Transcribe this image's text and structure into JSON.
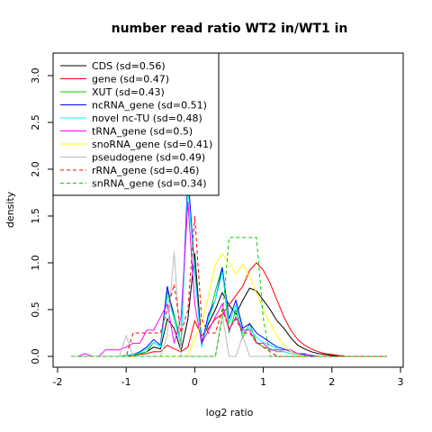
{
  "chart_data": {
    "type": "line",
    "title": "number read ratio WT2 in/WT1 in",
    "xlabel": "log2 ratio",
    "ylabel": "density",
    "xlim": [
      -2,
      3
    ],
    "ylim": [
      0,
      3.0
    ],
    "x_ticks": [
      -2,
      -1,
      0,
      1,
      2,
      3
    ],
    "x_tick_labels": [
      "-2",
      "-1",
      "0",
      "1",
      "2",
      "3"
    ],
    "y_ticks": [
      0.0,
      0.5,
      1.0,
      1.5,
      2.0,
      2.5,
      3.0
    ],
    "y_tick_labels": [
      "0.0",
      "0.5",
      "1.0",
      "1.5",
      "2.0",
      "2.5",
      "3.0"
    ],
    "legend_position": "top-left",
    "grid": false,
    "x": [
      -1.8,
      -1.7,
      -1.6,
      -1.5,
      -1.4,
      -1.3,
      -1.2,
      -1.1,
      -1.0,
      -0.9,
      -0.8,
      -0.7,
      -0.6,
      -0.5,
      -0.4,
      -0.3,
      -0.2,
      -0.1,
      0.0,
      0.1,
      0.2,
      0.3,
      0.4,
      0.5,
      0.6,
      0.7,
      0.8,
      0.9,
      1.0,
      1.1,
      1.2,
      1.3,
      1.4,
      1.5,
      1.6,
      1.7,
      1.8,
      1.9,
      2.0,
      2.1,
      2.2,
      2.3,
      2.4,
      2.5,
      2.6,
      2.7,
      2.8
    ],
    "series": [
      {
        "name": "CDS (sd=0.56)",
        "color": "#000000",
        "dash": "solid",
        "values": [
          0,
          0,
          0,
          0,
          0,
          0,
          0,
          0,
          0.01,
          0.02,
          0.03,
          0.05,
          0.1,
          0.08,
          0.4,
          0.3,
          0.06,
          0.4,
          1.1,
          0.15,
          0.35,
          0.5,
          0.68,
          0.55,
          0.45,
          0.6,
          0.73,
          0.7,
          0.6,
          0.5,
          0.38,
          0.3,
          0.2,
          0.12,
          0.08,
          0.05,
          0.03,
          0.02,
          0.01,
          0.01,
          0,
          0,
          0,
          0,
          0,
          0,
          0
        ]
      },
      {
        "name": "gene (sd=0.47)",
        "color": "#ff0000",
        "dash": "solid",
        "values": [
          0,
          0,
          0,
          0,
          0,
          0,
          0,
          0,
          0.01,
          0.01,
          0.02,
          0.03,
          0.05,
          0.05,
          0.12,
          0.08,
          0.05,
          0.1,
          0.38,
          0.22,
          0.3,
          0.4,
          0.45,
          0.55,
          0.65,
          0.75,
          0.92,
          1.0,
          0.92,
          0.78,
          0.6,
          0.42,
          0.28,
          0.18,
          0.12,
          0.08,
          0.05,
          0.03,
          0.02,
          0.01,
          0,
          0,
          0,
          0,
          0,
          0,
          0
        ]
      },
      {
        "name": "XUT (sd=0.43)",
        "color": "#00cc00",
        "dash": "solid",
        "values": [
          0,
          0,
          0,
          0,
          0,
          0,
          0,
          0,
          0,
          0,
          0.03,
          0.05,
          0.15,
          0.1,
          0.7,
          0.45,
          0.15,
          1.9,
          0.95,
          0.1,
          0.4,
          0.7,
          0.95,
          0.25,
          0.5,
          0.2,
          0.35,
          0.15,
          0.1,
          0.08,
          0.05,
          0.05,
          0.03,
          0.02,
          0,
          0,
          0,
          0,
          0,
          0,
          0,
          0,
          0,
          0,
          0,
          0,
          0
        ]
      },
      {
        "name": "ncRNA_gene (sd=0.51)",
        "color": "#0000ff",
        "dash": "solid",
        "values": [
          0,
          0,
          0,
          0,
          0,
          0,
          0,
          0,
          0.01,
          0.02,
          0.05,
          0.1,
          0.18,
          0.12,
          0.75,
          0.4,
          0.12,
          1.95,
          0.9,
          0.12,
          0.45,
          0.6,
          0.95,
          0.4,
          0.6,
          0.3,
          0.35,
          0.25,
          0.2,
          0.15,
          0.1,
          0.08,
          0.05,
          0.03,
          0.02,
          0.01,
          0,
          0,
          0,
          0,
          0,
          0,
          0,
          0,
          0,
          0,
          0
        ]
      },
      {
        "name": "novel nc-TU (sd=0.48)",
        "color": "#00ffff",
        "dash": "solid",
        "values": [
          0,
          0,
          0,
          0,
          0,
          0,
          0,
          0,
          0.01,
          0.02,
          0.04,
          0.08,
          0.15,
          0.1,
          0.65,
          0.4,
          0.12,
          1.8,
          0.88,
          0.1,
          0.4,
          0.6,
          0.9,
          0.35,
          0.55,
          0.25,
          0.3,
          0.2,
          0.15,
          0.12,
          0.08,
          0.05,
          0.03,
          0.02,
          0.01,
          0,
          0,
          0,
          0,
          0,
          0,
          0,
          0,
          0,
          0,
          0,
          0
        ]
      },
      {
        "name": "tRNA_gene (sd=0.5)",
        "color": "#ff00ff",
        "dash": "solid",
        "values": [
          0,
          0,
          0.03,
          0,
          0,
          0.07,
          0.07,
          0.07,
          0.1,
          0.14,
          0.14,
          0.28,
          0.28,
          0.42,
          0.56,
          0.14,
          0.42,
          1.65,
          0.56,
          0.14,
          0.28,
          0.42,
          0.56,
          0.28,
          0.42,
          0.28,
          0.28,
          0.14,
          0.14,
          0.07,
          0.07,
          0.07,
          0.07,
          0.03,
          0.03,
          0,
          0,
          0,
          0,
          0,
          0,
          0,
          0,
          0,
          0,
          0,
          0
        ]
      },
      {
        "name": "snoRNA_gene (sd=0.41)",
        "color": "#ffff00",
        "dash": "solid",
        "values": [
          0,
          0,
          0,
          0,
          0,
          0,
          0,
          0,
          0,
          0,
          0,
          0,
          0,
          0,
          0,
          0,
          0,
          0,
          0.2,
          0.35,
          0.65,
          0.98,
          1.1,
          1.0,
          0.88,
          0.98,
          0.85,
          0.68,
          0.5,
          0.35,
          0.22,
          0.12,
          0.05,
          0.02,
          0,
          0,
          0,
          0,
          0,
          0,
          0,
          0,
          0,
          0,
          0,
          0,
          0
        ]
      },
      {
        "name": "pseudogene (sd=0.49)",
        "color": "#bbbbbb",
        "dash": "solid",
        "values": [
          0,
          0,
          0,
          0,
          0,
          0,
          0,
          0,
          0.22,
          0,
          0,
          0,
          0,
          0,
          0.22,
          1.12,
          0,
          0,
          0,
          0,
          0,
          0,
          0.45,
          0,
          0,
          0.22,
          0,
          0,
          0,
          0,
          0,
          0,
          0,
          0,
          0,
          0,
          0,
          0,
          0,
          0,
          0,
          0,
          0,
          0,
          0,
          0,
          0
        ]
      },
      {
        "name": "rRNA_gene (sd=0.46)",
        "color": "#ff0000",
        "dash": "dashed",
        "values": [
          0,
          0,
          0,
          0,
          0,
          0,
          0,
          0,
          0,
          0.25,
          0.25,
          0.25,
          0.25,
          0.25,
          0.5,
          0.77,
          0.25,
          0.5,
          1.5,
          0.4,
          0.25,
          0.25,
          0.5,
          0.3,
          0.4,
          0.25,
          0.25,
          0.15,
          0.1,
          0.05,
          0,
          0,
          0,
          0,
          0,
          0,
          0,
          0,
          0,
          0,
          0,
          0,
          0,
          0,
          0,
          0,
          0
        ]
      },
      {
        "name": "snRNA_gene (sd=0.34)",
        "color": "#00cc00",
        "dash": "dashed",
        "values": [
          0,
          0,
          0,
          0,
          0,
          0,
          0,
          0,
          0,
          0,
          0,
          0,
          0,
          0,
          0,
          0,
          0,
          0,
          0,
          0,
          0,
          0,
          0.4,
          1.27,
          1.27,
          1.27,
          1.27,
          1.27,
          0.4,
          0,
          0,
          0,
          0,
          0,
          0,
          0,
          0,
          0,
          0,
          0,
          0,
          0,
          0,
          0,
          0,
          0,
          0
        ]
      }
    ]
  }
}
